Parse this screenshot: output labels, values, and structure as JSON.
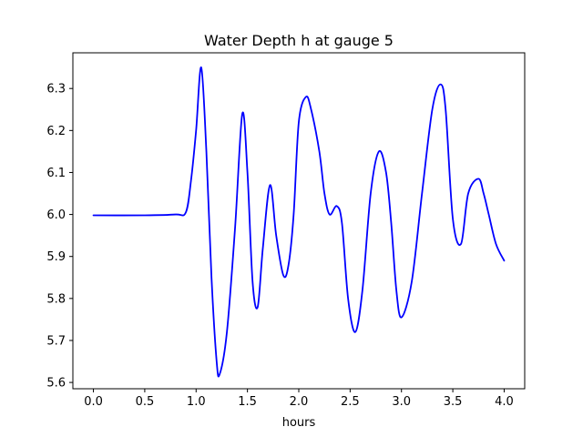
{
  "chart_data": {
    "type": "line",
    "title": "Water Depth h at gauge 5",
    "xlabel": "hours",
    "ylabel": "",
    "xlim": [
      -0.2,
      4.2
    ],
    "ylim": [
      5.585,
      6.385
    ],
    "x_ticks": [
      0.0,
      0.5,
      1.0,
      1.5,
      2.0,
      2.5,
      3.0,
      3.5,
      4.0
    ],
    "x_tick_labels": [
      "0.0",
      "0.5",
      "1.0",
      "1.5",
      "2.0",
      "2.5",
      "3.0",
      "3.5",
      "4.0"
    ],
    "y_ticks": [
      5.6,
      5.7,
      5.8,
      5.9,
      6.0,
      6.1,
      6.2,
      6.3
    ],
    "y_tick_labels": [
      "5.6",
      "5.7",
      "5.8",
      "5.9",
      "6.0",
      "6.1",
      "6.2",
      "6.3"
    ],
    "grid": false,
    "series": [
      {
        "color": "#0000ff",
        "x": [
          0.0,
          0.5,
          0.8,
          0.9,
          0.95,
          1.0,
          1.05,
          1.1,
          1.15,
          1.2,
          1.23,
          1.3,
          1.38,
          1.45,
          1.5,
          1.55,
          1.6,
          1.65,
          1.72,
          1.78,
          1.85,
          1.9,
          1.95,
          2.0,
          2.07,
          2.12,
          2.2,
          2.25,
          2.3,
          2.37,
          2.42,
          2.48,
          2.55,
          2.62,
          2.7,
          2.78,
          2.85,
          2.9,
          2.95,
          3.0,
          3.1,
          3.2,
          3.3,
          3.38,
          3.43,
          3.5,
          3.58,
          3.65,
          3.75,
          3.8,
          3.85,
          3.92,
          4.0
        ],
        "y": [
          5.998,
          5.998,
          6.0,
          6.005,
          6.08,
          6.2,
          6.35,
          6.15,
          5.85,
          5.65,
          5.62,
          5.72,
          5.97,
          6.24,
          6.1,
          5.84,
          5.78,
          5.92,
          6.07,
          5.95,
          5.855,
          5.88,
          6.0,
          6.22,
          6.28,
          6.25,
          6.15,
          6.05,
          6.0,
          6.02,
          5.98,
          5.8,
          5.72,
          5.82,
          6.05,
          6.15,
          6.1,
          5.98,
          5.82,
          5.755,
          5.84,
          6.05,
          6.25,
          6.31,
          6.25,
          5.99,
          5.93,
          6.05,
          6.085,
          6.05,
          6.0,
          5.93,
          5.89
        ]
      }
    ]
  }
}
